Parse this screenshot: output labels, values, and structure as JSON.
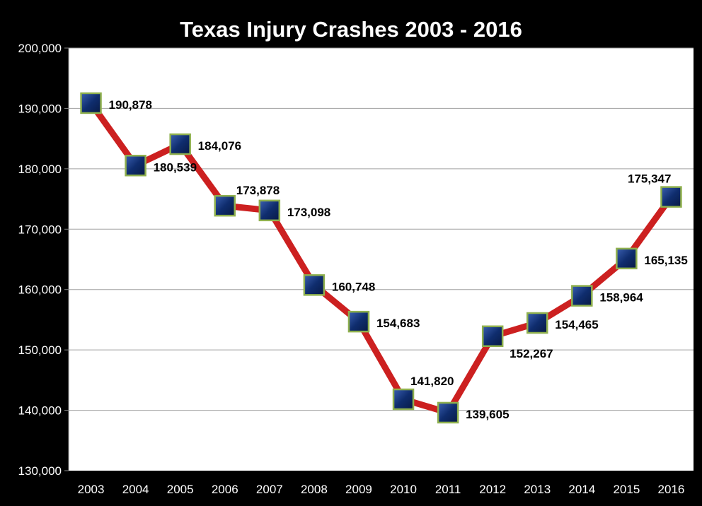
{
  "chart_data": {
    "type": "line",
    "title": "Texas Injury Crashes 2003 - 2016",
    "xlabel": "",
    "ylabel": "",
    "categories": [
      "2003",
      "2004",
      "2005",
      "2006",
      "2007",
      "2008",
      "2009",
      "2010",
      "2011",
      "2012",
      "2013",
      "2014",
      "2015",
      "2016"
    ],
    "values": [
      190878,
      180539,
      184076,
      173878,
      173098,
      160748,
      154683,
      141820,
      139605,
      152267,
      154465,
      158964,
      165135,
      175347
    ],
    "data_labels": [
      "190,878",
      "180,539",
      "184,076",
      "173,878",
      "173,098",
      "160,748",
      "154,683",
      "141,820",
      "139,605",
      "152,267",
      "154,465",
      "158,964",
      "165,135",
      "175,347"
    ],
    "ylim": [
      130000,
      200000
    ],
    "yticks": [
      130000,
      140000,
      150000,
      160000,
      170000,
      180000,
      190000,
      200000
    ],
    "ytick_labels": [
      "130,000",
      "140,000",
      "150,000",
      "160,000",
      "170,000",
      "180,000",
      "190,000",
      "200,000"
    ],
    "grid": true,
    "legend": "none",
    "colors": {
      "line": "#cc2020",
      "marker_fill": "#1a3a7a",
      "marker_border": "#8fb04e",
      "background": "#000000",
      "plot_background": "#ffffff",
      "gridline": "#a0a0a0"
    }
  }
}
